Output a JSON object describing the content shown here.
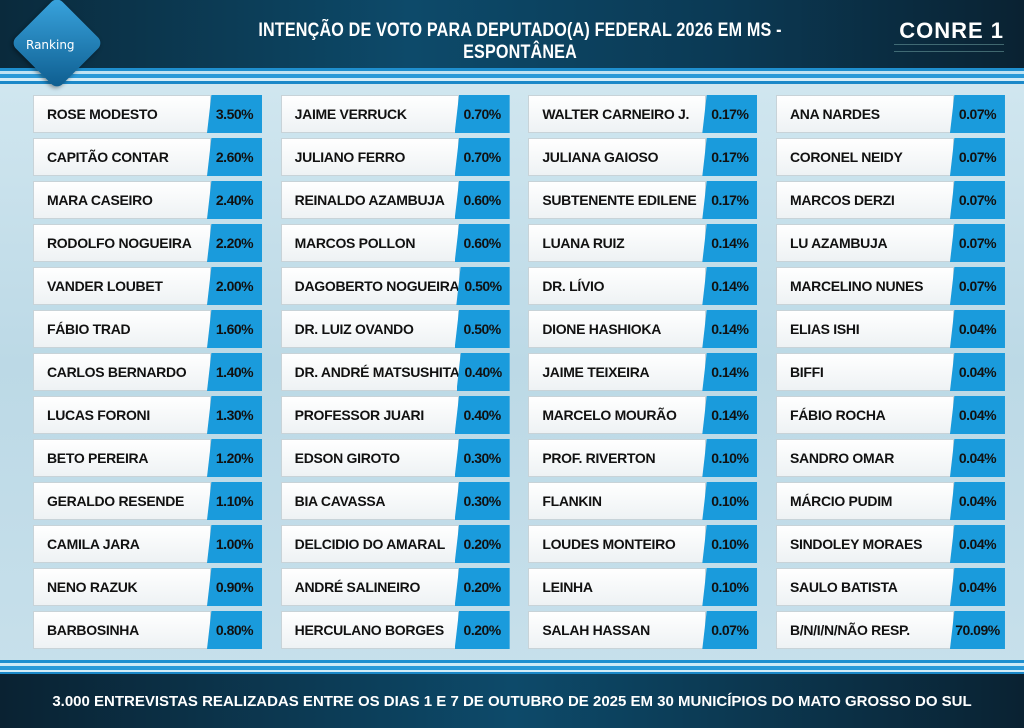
{
  "header": {
    "title": "INTENÇÃO DE VOTO PARA DEPUTADO(A) FEDERAL 2026 EM MS - ESPONTÂNEA",
    "logo_left": "Ranking",
    "logo_right": "CONRE 1"
  },
  "footer": {
    "text": "3.000 ENTREVISTAS REALIZADAS ENTRE OS DIAS 1 E 7 DE OUTUBRO DE 2025 EM 30 MUNICÍPIOS DO MATO GROSSO DO SUL"
  },
  "colors": {
    "accent": "#1a9bdc",
    "header": "#0d4a6a"
  },
  "chart_data": {
    "type": "table",
    "columns": [
      [
        [
          "ROSE MODESTO",
          "3.50%"
        ],
        [
          "CAPITÃO CONTAR",
          "2.60%"
        ],
        [
          "MARA CASEIRO",
          "2.40%"
        ],
        [
          "RODOLFO NOGUEIRA",
          "2.20%"
        ],
        [
          "VANDER LOUBET",
          "2.00%"
        ],
        [
          "FÁBIO TRAD",
          "1.60%"
        ],
        [
          "CARLOS BERNARDO",
          "1.40%"
        ],
        [
          "LUCAS FORONI",
          "1.30%"
        ],
        [
          "BETO PEREIRA",
          "1.20%"
        ],
        [
          "GERALDO RESENDE",
          "1.10%"
        ],
        [
          "CAMILA JARA",
          "1.00%"
        ],
        [
          "NENO RAZUK",
          "0.90%"
        ],
        [
          "BARBOSINHA",
          "0.80%"
        ]
      ],
      [
        [
          "JAIME VERRUCK",
          "0.70%"
        ],
        [
          "JULIANO FERRO",
          "0.70%"
        ],
        [
          "REINALDO AZAMBUJA",
          "0.60%"
        ],
        [
          "MARCOS POLLON",
          "0.60%"
        ],
        [
          "DAGOBERTO NOGUEIRA",
          "0.50%"
        ],
        [
          "DR. LUIZ OVANDO",
          "0.50%"
        ],
        [
          "DR. ANDRÉ MATSUSHITA",
          "0.40%"
        ],
        [
          "PROFESSOR JUARI",
          "0.40%"
        ],
        [
          "EDSON GIROTO",
          "0.30%"
        ],
        [
          "BIA CAVASSA",
          "0.30%"
        ],
        [
          "DELCIDIO DO AMARAL",
          "0.20%"
        ],
        [
          "ANDRÉ SALINEIRO",
          "0.20%"
        ],
        [
          "HERCULANO BORGES",
          "0.20%"
        ]
      ],
      [
        [
          "WALTER CARNEIRO J.",
          "0.17%"
        ],
        [
          "JULIANA GAIOSO",
          "0.17%"
        ],
        [
          "SUBTENENTE EDILENE",
          "0.17%"
        ],
        [
          "LUANA RUIZ",
          "0.14%"
        ],
        [
          "DR. LÍVIO",
          "0.14%"
        ],
        [
          "DIONE HASHIOKA",
          "0.14%"
        ],
        [
          "JAIME TEIXEIRA",
          "0.14%"
        ],
        [
          "MARCELO MOURÃO",
          "0.14%"
        ],
        [
          "PROF. RIVERTON",
          "0.10%"
        ],
        [
          "FLANKIN",
          "0.10%"
        ],
        [
          "LOUDES MONTEIRO",
          "0.10%"
        ],
        [
          "LEINHA",
          "0.10%"
        ],
        [
          "SALAH HASSAN",
          "0.07%"
        ]
      ],
      [
        [
          "ANA NARDES",
          "0.07%"
        ],
        [
          "CORONEL NEIDY",
          "0.07%"
        ],
        [
          "MARCOS DERZI",
          "0.07%"
        ],
        [
          "LU AZAMBUJA",
          "0.07%"
        ],
        [
          "MARCELINO NUNES",
          "0.07%"
        ],
        [
          "ELIAS ISHI",
          "0.04%"
        ],
        [
          "BIFFI",
          "0.04%"
        ],
        [
          "FÁBIO ROCHA",
          "0.04%"
        ],
        [
          "SANDRO OMAR",
          "0.04%"
        ],
        [
          "MÁRCIO PUDIM",
          "0.04%"
        ],
        [
          "SINDOLEY MORAES",
          "0.04%"
        ],
        [
          "SAULO BATISTA",
          "0.04%"
        ],
        [
          "B/N/I/N/NÃO RESP.",
          "70.09%"
        ]
      ]
    ]
  }
}
